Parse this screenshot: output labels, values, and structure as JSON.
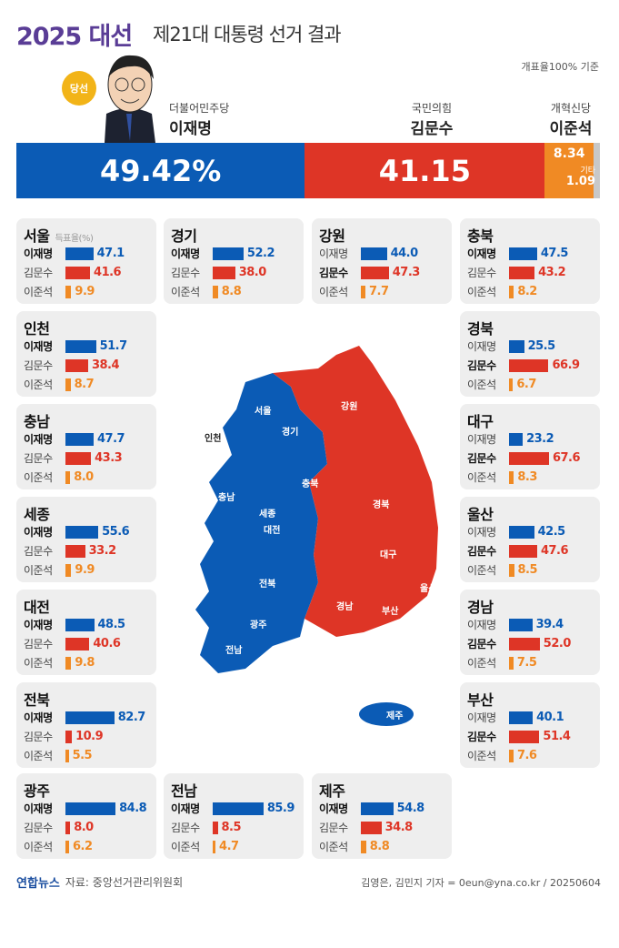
{
  "header": {
    "brand": "2025 대선",
    "title": "제21대 대통령 선거 결과",
    "basis": "개표율100% 기준",
    "winner_badge": "당선"
  },
  "colors": {
    "lee": "#0b5bb5",
    "kim": "#de3526",
    "lee_js": "#f08a24",
    "other": "#c8c8c8",
    "card": "#eeeeee"
  },
  "candidates": [
    {
      "party": "더불어민주당",
      "name": "이재명"
    },
    {
      "party": "국민의힘",
      "name": "김문수"
    },
    {
      "party": "개혁신당",
      "name": "이준석"
    }
  ],
  "chart_data": {
    "type": "bar",
    "national": {
      "values": [
        49.42,
        41.15,
        8.34,
        1.09
      ],
      "labels": [
        "49.42%",
        "41.15",
        "8.34",
        "1.09"
      ],
      "other_label": "기타"
    },
    "region_subtitle": "득표율(%)",
    "series_names": [
      "이재명",
      "김문수",
      "이준석"
    ],
    "regions": [
      {
        "name": "서울",
        "values": [
          47.1,
          41.6,
          9.9
        ],
        "winner": 0
      },
      {
        "name": "경기",
        "values": [
          52.2,
          38.0,
          8.8
        ],
        "winner": 0
      },
      {
        "name": "강원",
        "values": [
          44.0,
          47.3,
          7.7
        ],
        "winner": 1
      },
      {
        "name": "충북",
        "values": [
          47.5,
          43.2,
          8.2
        ],
        "winner": 0
      },
      {
        "name": "인천",
        "values": [
          51.7,
          38.4,
          8.7
        ],
        "winner": 0
      },
      {
        "name": "경북",
        "values": [
          25.5,
          66.9,
          6.7
        ],
        "winner": 1
      },
      {
        "name": "충남",
        "values": [
          47.7,
          43.3,
          8.0
        ],
        "winner": 0
      },
      {
        "name": "대구",
        "values": [
          23.2,
          67.6,
          8.3
        ],
        "winner": 1
      },
      {
        "name": "세종",
        "values": [
          55.6,
          33.2,
          9.9
        ],
        "winner": 0
      },
      {
        "name": "울산",
        "values": [
          42.5,
          47.6,
          8.5
        ],
        "winner": 1
      },
      {
        "name": "대전",
        "values": [
          48.5,
          40.6,
          9.8
        ],
        "winner": 0
      },
      {
        "name": "경남",
        "values": [
          39.4,
          52.0,
          7.5
        ],
        "winner": 1
      },
      {
        "name": "전북",
        "values": [
          82.7,
          10.9,
          5.5
        ],
        "winner": 0
      },
      {
        "name": "부산",
        "values": [
          40.1,
          51.4,
          7.6
        ],
        "winner": 1
      },
      {
        "name": "광주",
        "values": [
          84.8,
          8.0,
          6.2
        ],
        "winner": 0
      },
      {
        "name": "전남",
        "values": [
          85.9,
          8.5,
          4.7
        ],
        "winner": 0
      },
      {
        "name": "제주",
        "values": [
          54.8,
          34.8,
          8.8
        ],
        "winner": 0
      }
    ]
  },
  "map": {
    "labels": [
      "서울",
      "경기",
      "인천",
      "강원",
      "충북",
      "충남",
      "세종",
      "대전",
      "경북",
      "대구",
      "전북",
      "울산",
      "경남",
      "부산",
      "광주",
      "전남",
      "제주"
    ]
  },
  "footer": {
    "logo": "연합뉴스",
    "source": "자료: 중앙선거관리위원회",
    "credit": "김영은, 김민지 기자 = 0eun@yna.co.kr / 20250604"
  }
}
